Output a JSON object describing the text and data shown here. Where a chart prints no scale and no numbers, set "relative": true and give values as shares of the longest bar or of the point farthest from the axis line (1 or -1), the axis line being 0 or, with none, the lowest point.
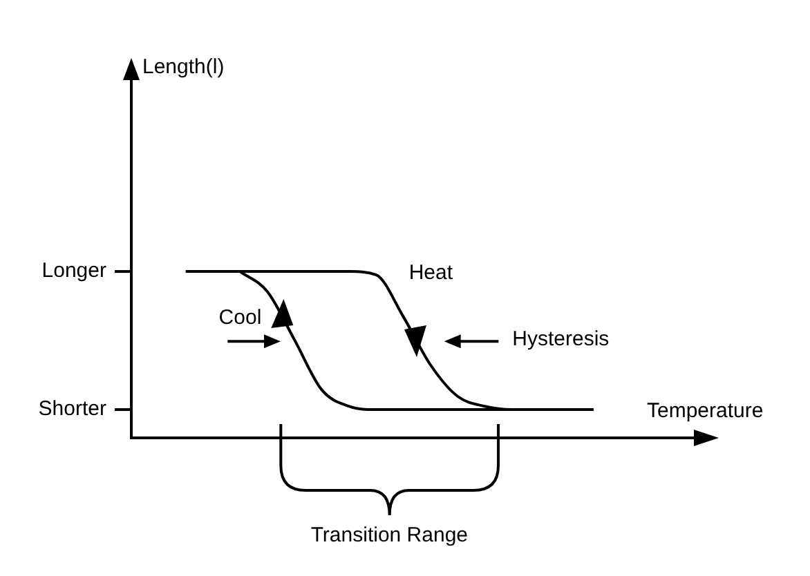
{
  "chart_data": {
    "type": "line",
    "xlabel": "Temperature",
    "relative": true,
    "categories": [
      null,
      null,
      null,
      null,
      null,
      null,
      null,
      null,
      null,
      null,
      null,
      null,
      null,
      null,
      null,
      null,
      null,
      null,
      null,
      null,
      null,
      null
    ],
    "series": [
      {
        "name": "Heat",
        "color": "#000000",
        "values": [
          null,
          null,
          1,
          1,
          1,
          1,
          1,
          1,
          1,
          0.98,
          0.73,
          0.44,
          0.25,
          0.19,
          0.17,
          0.17,
          0.17,
          0.17,
          null,
          null,
          null,
          null
        ]
      },
      {
        "name": "Cool",
        "color": "#000000",
        "values": [
          null,
          null,
          null,
          null,
          1,
          0.88,
          0.59,
          0.29,
          0.19,
          0.17,
          0.17,
          0.17,
          0.17,
          0.17,
          0.17,
          0.17,
          0.17,
          0.17,
          null,
          null,
          null,
          null
        ]
      }
    ],
    "marker": "none",
    "line_style": "solid",
    "annotations": [
      "Length(l)",
      "Longer",
      "Shorter",
      "Hysteresis",
      "Transition Range"
    ]
  }
}
